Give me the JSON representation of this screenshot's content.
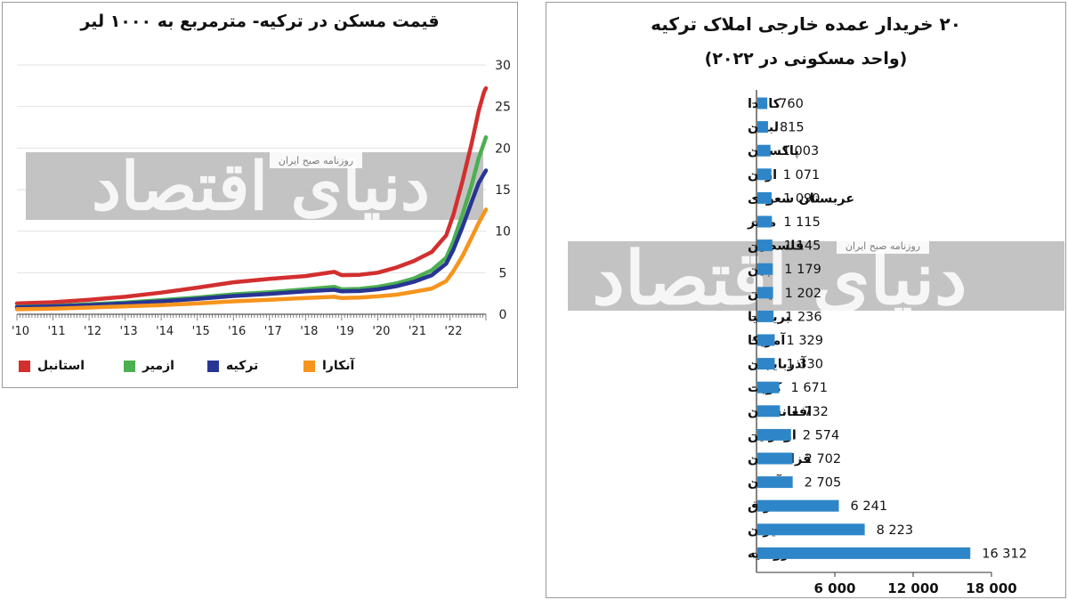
{
  "left_chart": {
    "title": "قیمت مسکن در ترکیه- مترمربع به ۱۰۰۰ لیر",
    "legend": [
      {
        "name": "استانبل",
        "color": "#d32f2f"
      },
      {
        "name": "ازمیر",
        "color": "#4caf50"
      },
      {
        "name": "ترکیه",
        "color": "#283593"
      },
      {
        "name": "آنکارا",
        "color": "#f7941d"
      }
    ]
  },
  "right_chart": {
    "title": "۲۰ خریدار عمده خارجی املاک ترکیه",
    "subtitle": "(واحد مسکونی در ۲۰۲۲)"
  },
  "watermark": {
    "text": "دنیای اقتصاد",
    "subtext": "روزنامه صبح ایران"
  },
  "chart_data": [
    {
      "type": "line",
      "title": "قیمت مسکن در ترکیه- مترمربع به ۱۰۰۰ لیر",
      "xlabel": "",
      "ylabel": "",
      "x_tick_labels": [
        "'10",
        "'11",
        "'12",
        "'13",
        "'14",
        "'15",
        "'16",
        "'17",
        "'18",
        "'19",
        "'20",
        "'21",
        "'22"
      ],
      "y_ticks": [
        "0",
        "5",
        "10",
        "15",
        "20",
        "25",
        "30"
      ],
      "ylim": [
        0,
        30
      ],
      "xlim": [
        2010,
        2023
      ],
      "grid": true,
      "legend_position": "bottom",
      "series": [
        {
          "name": "استانبل",
          "color": "#d32f2f",
          "points": [
            [
              2010,
              1.3
            ],
            [
              2011,
              1.45
            ],
            [
              2012,
              1.75
            ],
            [
              2013,
              2.1
            ],
            [
              2014,
              2.6
            ],
            [
              2015,
              3.2
            ],
            [
              2016,
              3.85
            ],
            [
              2017,
              4.25
            ],
            [
              2018,
              4.6
            ],
            [
              2018.8,
              5.1
            ],
            [
              2019,
              4.7
            ],
            [
              2019.5,
              4.75
            ],
            [
              2020,
              5.0
            ],
            [
              2020.5,
              5.6
            ],
            [
              2021,
              6.4
            ],
            [
              2021.5,
              7.5
            ],
            [
              2021.9,
              9.5
            ],
            [
              2022.1,
              12.0
            ],
            [
              2022.35,
              16.0
            ],
            [
              2022.6,
              20.5
            ],
            [
              2022.8,
              24.5
            ],
            [
              2022.95,
              26.8
            ],
            [
              2023,
              27.2
            ]
          ]
        },
        {
          "name": "ازمیر",
          "color": "#4caf50",
          "points": [
            [
              2010,
              0.9
            ],
            [
              2011,
              1.0
            ],
            [
              2012,
              1.2
            ],
            [
              2013,
              1.4
            ],
            [
              2014,
              1.7
            ],
            [
              2015,
              2.0
            ],
            [
              2016,
              2.4
            ],
            [
              2017,
              2.65
            ],
            [
              2018,
              3.0
            ],
            [
              2018.8,
              3.3
            ],
            [
              2019,
              3.0
            ],
            [
              2019.5,
              3.05
            ],
            [
              2020,
              3.3
            ],
            [
              2020.5,
              3.7
            ],
            [
              2021,
              4.3
            ],
            [
              2021.5,
              5.3
            ],
            [
              2021.9,
              6.8
            ],
            [
              2022.1,
              8.8
            ],
            [
              2022.35,
              12.0
            ],
            [
              2022.6,
              15.5
            ],
            [
              2022.8,
              18.8
            ],
            [
              2023,
              21.3
            ]
          ]
        },
        {
          "name": "ترکیه",
          "color": "#283593",
          "points": [
            [
              2010,
              0.85
            ],
            [
              2011,
              0.95
            ],
            [
              2012,
              1.1
            ],
            [
              2013,
              1.3
            ],
            [
              2014,
              1.55
            ],
            [
              2015,
              1.85
            ],
            [
              2016,
              2.2
            ],
            [
              2017,
              2.45
            ],
            [
              2018,
              2.75
            ],
            [
              2018.8,
              2.95
            ],
            [
              2019,
              2.75
            ],
            [
              2019.5,
              2.8
            ],
            [
              2020,
              3.0
            ],
            [
              2020.5,
              3.35
            ],
            [
              2021,
              3.9
            ],
            [
              2021.5,
              4.7
            ],
            [
              2021.9,
              6.1
            ],
            [
              2022.1,
              7.8
            ],
            [
              2022.35,
              10.5
            ],
            [
              2022.6,
              13.5
            ],
            [
              2022.8,
              15.8
            ],
            [
              2023,
              17.3
            ]
          ]
        },
        {
          "name": "آنکارا",
          "color": "#f7941d",
          "points": [
            [
              2010,
              0.6
            ],
            [
              2011,
              0.68
            ],
            [
              2012,
              0.8
            ],
            [
              2013,
              0.95
            ],
            [
              2014,
              1.1
            ],
            [
              2015,
              1.3
            ],
            [
              2016,
              1.55
            ],
            [
              2017,
              1.75
            ],
            [
              2018,
              1.95
            ],
            [
              2018.8,
              2.1
            ],
            [
              2019,
              1.95
            ],
            [
              2019.5,
              2.0
            ],
            [
              2020,
              2.15
            ],
            [
              2020.5,
              2.35
            ],
            [
              2021,
              2.7
            ],
            [
              2021.5,
              3.1
            ],
            [
              2021.9,
              4.0
            ],
            [
              2022.1,
              5.2
            ],
            [
              2022.35,
              7.0
            ],
            [
              2022.6,
              9.2
            ],
            [
              2022.8,
              11.0
            ],
            [
              2023,
              12.6
            ]
          ]
        }
      ]
    },
    {
      "type": "bar",
      "orientation": "horizontal",
      "title": "۲۰ خریدار عمده خارجی املاک ترکیه",
      "subtitle": "(واحد مسکونی در ۲۰۲۲)",
      "xlim": [
        0,
        18000
      ],
      "x_tick_labels": [
        "6 000",
        "12 000",
        "18 000"
      ],
      "bar_color": "#2e86c8",
      "categories": [
        "کانادا",
        "لبنان",
        "پاکستان",
        "اردن",
        "عربستان سعودی",
        "مصر",
        "فلسطین",
        "چین",
        "یمن",
        "بریتانیا",
        "آمریکا",
        "آذربایجان",
        "کویت",
        "افغانستان",
        "اوکراین",
        "قزاقستان",
        "آلمان",
        "عراق",
        "ایران",
        "روسیه"
      ],
      "values": [
        760,
        815,
        1003,
        1071,
        1090,
        1115,
        1145,
        1179,
        1202,
        1236,
        1329,
        1330,
        1671,
        1732,
        2574,
        2702,
        2705,
        6241,
        8223,
        16312
      ],
      "value_labels": [
        "760",
        "815",
        "1 003",
        "1 071",
        "1 090",
        "1 115",
        "1 145",
        "1 179",
        "1 202",
        "1 236",
        "1 329",
        "1 330",
        "1 671",
        "1 732",
        "2 574",
        "2 702",
        "2 705",
        "6 241",
        "8 223",
        "16 312"
      ]
    }
  ]
}
